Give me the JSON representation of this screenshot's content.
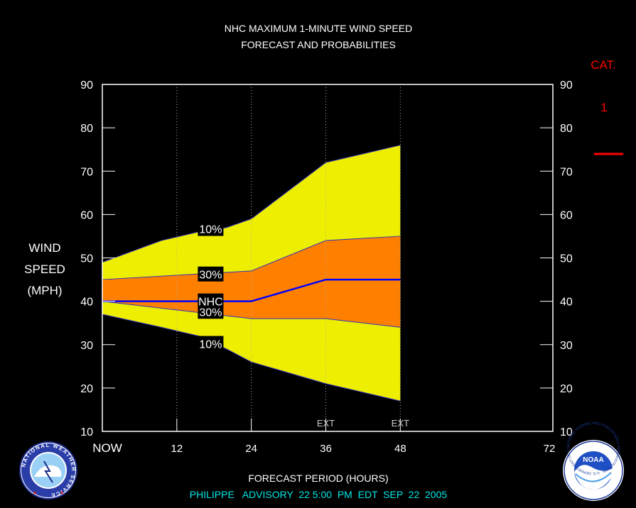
{
  "chart_data": {
    "type": "area",
    "title": "NHC MAXIMUM 1-MINUTE WIND SPEED",
    "subtitle": "FORECAST AND PROBABILITIES",
    "ylabel": [
      "WIND",
      "SPEED",
      "(MPH)"
    ],
    "xlabel": "FORECAST PERIOD (HOURS)",
    "footer": "PHILIPPE   ADVISORY  22 5:00  PM  EDT  SEP  22  2005",
    "xlim": [
      0,
      72
    ],
    "ylim": [
      10,
      90
    ],
    "x_ticks": [
      {
        "value": 0,
        "label": "NOW"
      },
      {
        "value": 12,
        "label": "12"
      },
      {
        "value": 24,
        "label": "24"
      },
      {
        "value": 36,
        "label": "36"
      },
      {
        "value": 48,
        "label": "48"
      },
      {
        "value": 72,
        "label": "72"
      }
    ],
    "y_ticks": [
      10,
      20,
      30,
      40,
      50,
      60,
      70,
      80,
      90
    ],
    "ext_label": "EXT",
    "ext_hours": [
      36,
      48
    ],
    "bands": {
      "upper_10": {
        "x": [
          0,
          9.5,
          15.5,
          20,
          24,
          36,
          48
        ],
        "y": [
          49,
          54,
          56,
          57,
          59,
          72,
          76
        ]
      },
      "upper_30": {
        "x": [
          0,
          24,
          36,
          48
        ],
        "y": [
          45,
          47,
          54,
          55
        ]
      },
      "lower_30": {
        "x": [
          0,
          24,
          36,
          48
        ],
        "y": [
          40,
          36,
          36,
          34
        ]
      },
      "lower_10": {
        "x": [
          0,
          9.5,
          15.5,
          20,
          24,
          36,
          48
        ],
        "y": [
          37,
          34,
          32,
          29,
          26,
          21,
          17
        ]
      }
    },
    "nhc_forecast": {
      "x": [
        0,
        24,
        36,
        48
      ],
      "y": [
        40,
        40,
        45,
        45
      ]
    },
    "band_labels": {
      "upper_10": "10%",
      "upper_30": "30%",
      "nhc": "NHC",
      "lower_30": "30%",
      "lower_10": "10%"
    },
    "category": {
      "title": "CAT.",
      "label": "1",
      "threshold": 74
    },
    "colors": {
      "outer": "#eeee00",
      "inner": "#ff8000",
      "forecast": "#0000ff",
      "category": "#ff0000",
      "text": "#ffffff",
      "footer": "#00e5e5"
    }
  },
  "logos": {
    "nws": {
      "text": "NATIONAL WEATHER SERVICE"
    },
    "noaa": {
      "label": "NOAA",
      "text": "NATIONAL OCEANIC AND ATMOSPHERIC ADMINISTRATION · U.S. DEPARTMENT OF COMMERCE"
    }
  }
}
